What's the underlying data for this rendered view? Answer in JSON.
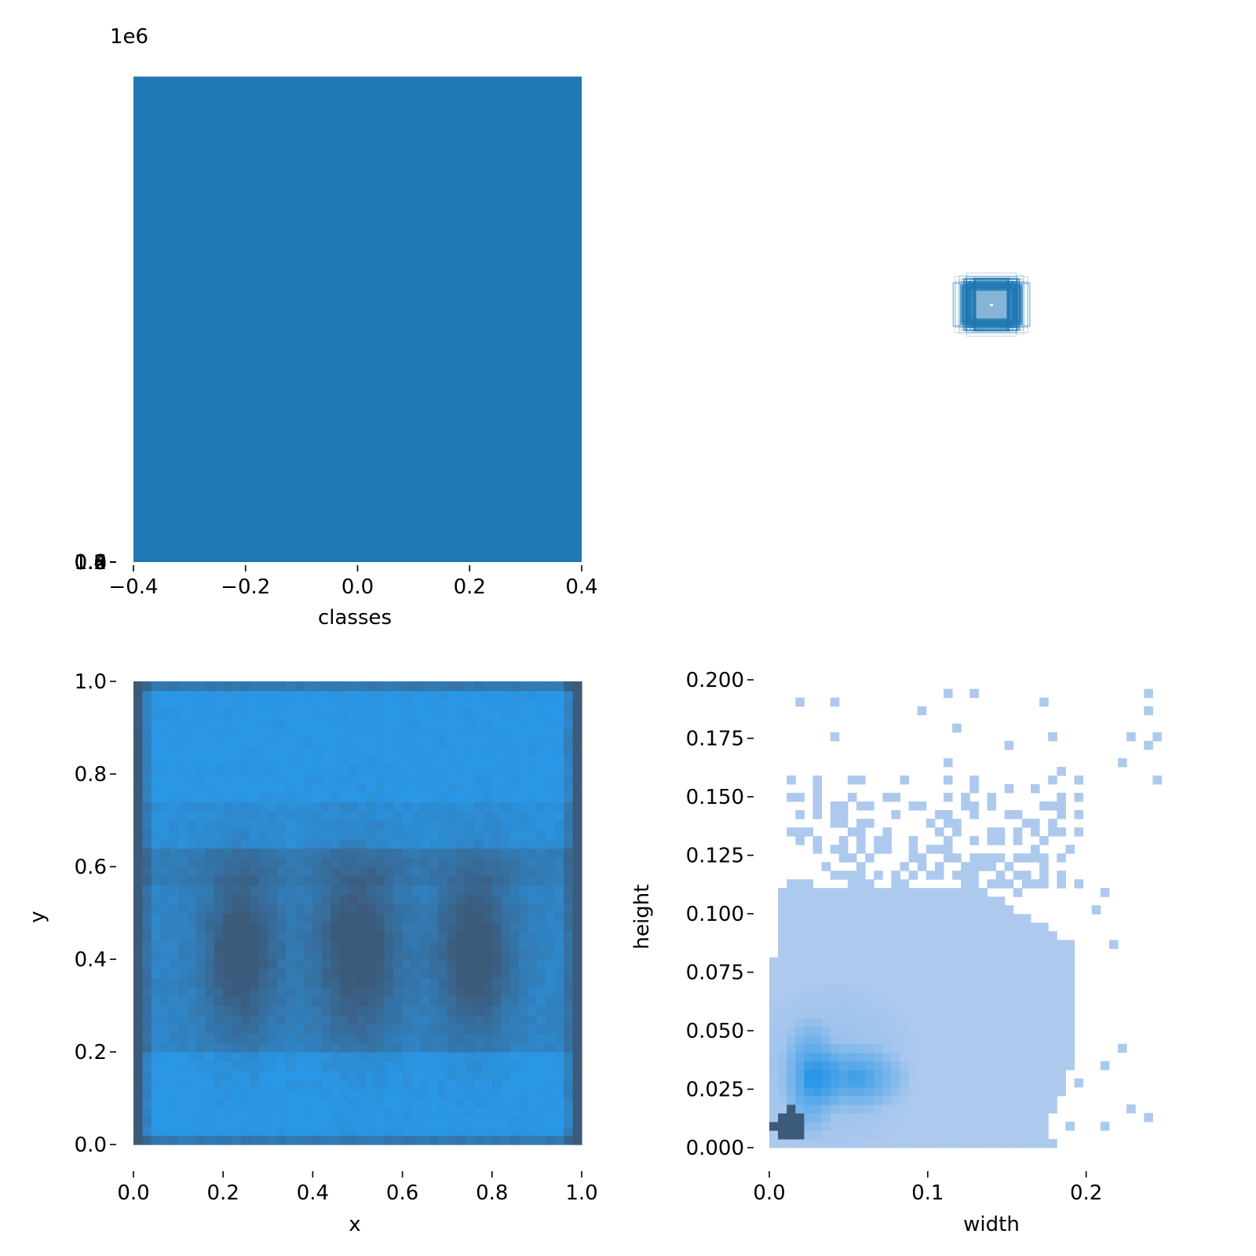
{
  "chart_data": [
    {
      "type": "bar",
      "panel": "top-left",
      "xlabel": "classes",
      "ylabel": "",
      "y_offset_label": "1e6",
      "categories": [
        0
      ],
      "values": [
        1370000
      ],
      "bar_width": 0.8,
      "xlim": [
        -0.4,
        0.4
      ],
      "ylim": [
        0,
        1400000.0
      ],
      "xticks": [
        -0.4,
        -0.2,
        0.0,
        0.2,
        0.4
      ],
      "xtick_labels": [
        "−0.4",
        "−0.2",
        "0.0",
        "0.2",
        "0.4"
      ],
      "yticks": [
        0,
        0.2,
        0.4,
        0.6,
        0.8,
        1.0,
        1.2,
        1.4
      ],
      "ytick_labels": [
        "0.0",
        "0.2",
        "0.4",
        "0.6",
        "0.8",
        "1.0",
        "1.2",
        "1.4"
      ],
      "color": "#1f77b4",
      "grid": false,
      "legend": "none"
    },
    {
      "type": "other",
      "panel": "top-right",
      "description_kind": "overlaid bounding boxes centered at image center",
      "xlim": [
        0,
        1
      ],
      "ylim": [
        0,
        1
      ],
      "boxes_sample": [
        {
          "w": 0.07,
          "h": 0.06
        },
        {
          "w": 0.075,
          "h": 0.065
        },
        {
          "w": 0.08,
          "h": 0.07
        },
        {
          "w": 0.085,
          "h": 0.07
        },
        {
          "w": 0.09,
          "h": 0.075
        },
        {
          "w": 0.095,
          "h": 0.08
        },
        {
          "w": 0.1,
          "h": 0.085
        },
        {
          "w": 0.11,
          "h": 0.08
        },
        {
          "w": 0.12,
          "h": 0.09
        },
        {
          "w": 0.13,
          "h": 0.085
        },
        {
          "w": 0.1,
          "h": 0.11
        },
        {
          "w": 0.085,
          "h": 0.1
        },
        {
          "w": 0.15,
          "h": 0.085
        },
        {
          "w": 0.14,
          "h": 0.09
        }
      ],
      "color": "#1f77b4"
    },
    {
      "type": "heatmap",
      "panel": "bottom-left",
      "xlabel": "x",
      "ylabel": "y",
      "xlim": [
        0,
        1
      ],
      "ylim": [
        0,
        1
      ],
      "xticks": [
        0.0,
        0.2,
        0.4,
        0.6,
        0.8,
        1.0
      ],
      "xtick_labels": [
        "0.0",
        "0.2",
        "0.4",
        "0.6",
        "0.8",
        "1.0"
      ],
      "yticks": [
        0.0,
        0.2,
        0.4,
        0.6,
        0.8,
        1.0
      ],
      "ytick_labels": [
        "0.0",
        "0.2",
        "0.4",
        "0.6",
        "0.8",
        "1.0"
      ],
      "bins": 50,
      "low_color": "#2a97e6",
      "high_color": "#3c5a7a",
      "dense_regions": [
        {
          "cx": 0.24,
          "cy": 0.42,
          "sx": 0.06,
          "sy": 0.13
        },
        {
          "cx": 0.5,
          "cy": 0.42,
          "sx": 0.07,
          "sy": 0.14
        },
        {
          "cx": 0.76,
          "cy": 0.42,
          "sx": 0.06,
          "sy": 0.13
        }
      ],
      "grid": false
    },
    {
      "type": "heatmap",
      "panel": "bottom-right",
      "xlabel": "width",
      "ylabel": "height",
      "xlim": [
        0,
        0.275
      ],
      "ylim": [
        0,
        0.2
      ],
      "xticks": [
        0.0,
        0.1,
        0.2
      ],
      "xtick_labels": [
        "0.0",
        "0.1",
        "0.2"
      ],
      "yticks": [
        0.0,
        0.025,
        0.05,
        0.075,
        0.1,
        0.125,
        0.15,
        0.175,
        0.2
      ],
      "ytick_labels": [
        "0.000",
        "0.025",
        "0.050",
        "0.075",
        "0.100",
        "0.125",
        "0.150",
        "0.175",
        "0.200"
      ],
      "bins": 50,
      "low_color": "#adc9ee",
      "mid_color": "#2a97e6",
      "high_color": "#3c5a7a",
      "dense_regions": [
        {
          "w": 0.012,
          "h": 0.01,
          "weight": "peak"
        },
        {
          "w": 0.025,
          "h": 0.03,
          "weight": "high"
        },
        {
          "w": 0.055,
          "h": 0.03,
          "weight": "high"
        }
      ],
      "grid": false
    }
  ]
}
